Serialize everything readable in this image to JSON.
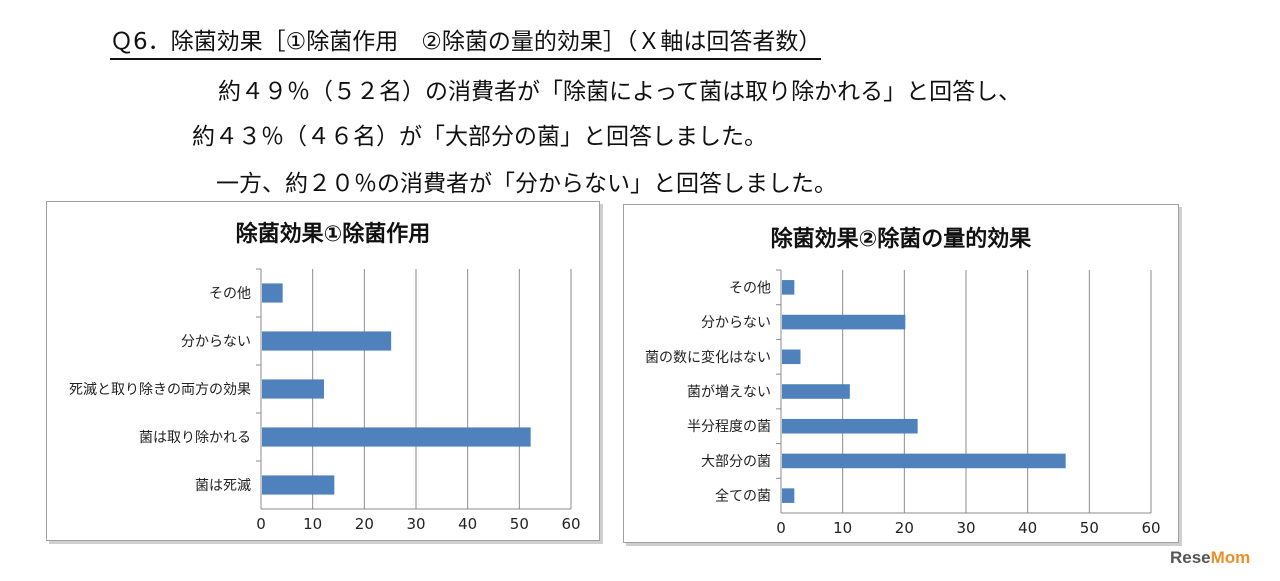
{
  "header": {
    "title": "Ｑ6．除菌効果［①除菌作用　②除菌の量的効果］（Ｘ軸は回答者数）",
    "lines": [
      "約４９％（５２名）の消費者が「除菌によって菌は取り除かれる」と回答し、",
      "約４３％（４６名）が「大部分の菌」と回答しました。",
      "一方、約２０％の消費者が「分からない」と回答しました。"
    ]
  },
  "chart_data": [
    {
      "type": "bar",
      "orientation": "horizontal",
      "title": "除菌効果①除菌作用",
      "categories": [
        "その他",
        "分からない",
        "死滅と取り除きの両方の効果",
        "菌は取り除かれる",
        "菌は死滅"
      ],
      "values": [
        4,
        25,
        12,
        52,
        14
      ],
      "xlim": [
        0,
        60
      ],
      "xticks": [
        "0",
        "10",
        "20",
        "30",
        "40",
        "50",
        "60"
      ],
      "grid": true,
      "bar_color": "#4f81bd"
    },
    {
      "type": "bar",
      "orientation": "horizontal",
      "title": "除菌効果②除菌の量的効果",
      "categories": [
        "その他",
        "分からない",
        "菌の数に変化はない",
        "菌が増えない",
        "半分程度の菌",
        "大部分の菌",
        "全ての菌"
      ],
      "values": [
        2,
        20,
        3,
        11,
        22,
        46,
        2
      ],
      "xlim": [
        0,
        60
      ],
      "xticks": [
        "0",
        "10",
        "20",
        "30",
        "40",
        "50",
        "60"
      ],
      "grid": true,
      "bar_color": "#4f81bd"
    }
  ],
  "watermark": {
    "text_a": "Rese",
    "text_b": "Mom"
  }
}
